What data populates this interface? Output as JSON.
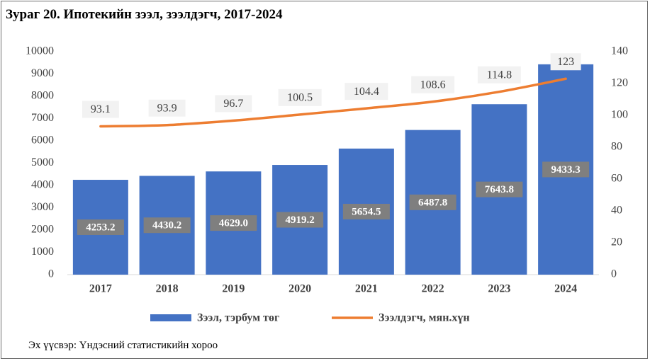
{
  "title": "Зураг 20. Ипотекийн зээл, зээлдэгч, 2017-2024",
  "source": "Эх үүсвэр: Үндэсний статистикийн хороо",
  "colors": {
    "bar": "#4472c4",
    "line": "#ed7d31",
    "bar_label_bg": "#7f7f7f",
    "line_label_bg": "#f2f2f2"
  },
  "chart_data": {
    "type": "bar",
    "categories": [
      "2017",
      "2018",
      "2019",
      "2020",
      "2021",
      "2022",
      "2023",
      "2024"
    ],
    "series": [
      {
        "name": "Зээл, тэрбум төг",
        "type": "bar",
        "axis": "left",
        "values": [
          4253.2,
          4430.2,
          4629.0,
          4919.2,
          5654.5,
          6487.8,
          7643.8,
          9433.3
        ],
        "labels": [
          "4253.2",
          "4430.2",
          "4629.0",
          "4919.2",
          "5654.5",
          "6487.8",
          "7643.8",
          "9433.3"
        ]
      },
      {
        "name": "Зээлдэгч, мян.хүн",
        "type": "line",
        "axis": "right",
        "values": [
          93.1,
          93.9,
          96.7,
          100.5,
          104.4,
          108.6,
          114.8,
          123
        ],
        "labels": [
          "93.1",
          "93.9",
          "96.7",
          "100.5",
          "104.4",
          "108.6",
          "114.8",
          "123"
        ]
      }
    ],
    "y_left": {
      "ylim": [
        0,
        10000
      ],
      "ticks": [
        "0",
        "1000",
        "2000",
        "3000",
        "4000",
        "5000",
        "6000",
        "7000",
        "8000",
        "9000",
        "10000"
      ]
    },
    "y_right": {
      "ylim": [
        0,
        140
      ],
      "ticks": [
        "0",
        "20",
        "40",
        "60",
        "80",
        "100",
        "120",
        "140"
      ]
    },
    "grid": false,
    "legend_position": "bottom"
  }
}
